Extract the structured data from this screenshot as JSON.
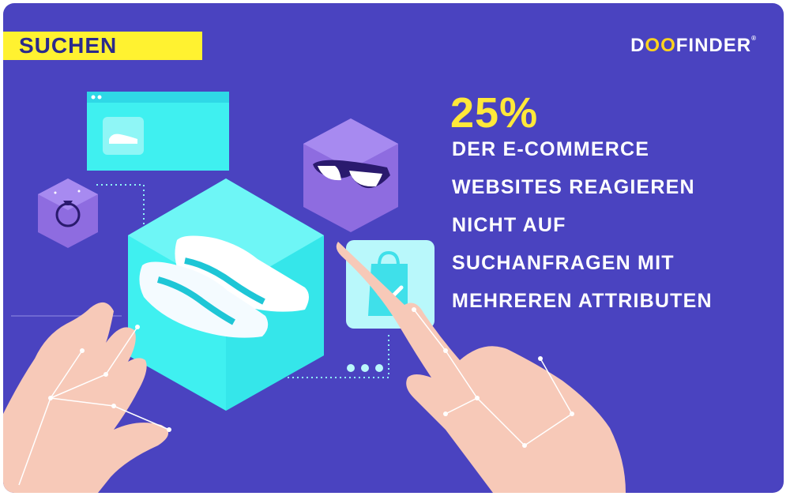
{
  "tag": {
    "label": "SUCHEN"
  },
  "logo": {
    "prefix": "D",
    "oo": "OO",
    "suffix": "FINDER",
    "mark": "®"
  },
  "headline": {
    "stat": "25%",
    "lines": [
      "DER E-COMMERCE",
      "WEBSITES REAGIEREN",
      "NICHT AUF",
      "SUCHANFRAGEN MIT",
      "MEHREREN ATTRIBUTEN"
    ]
  },
  "colors": {
    "background": "#4a43c0",
    "accent_yellow": "#fff230",
    "cyan": "#3ff0f0",
    "purple_cube": "#8e6ce0",
    "skin": "#f7c9b8"
  },
  "icons": [
    "sneaker-icon",
    "ring-icon",
    "glasses-icon",
    "shopping-bag-check-icon",
    "browser-window-icon"
  ]
}
